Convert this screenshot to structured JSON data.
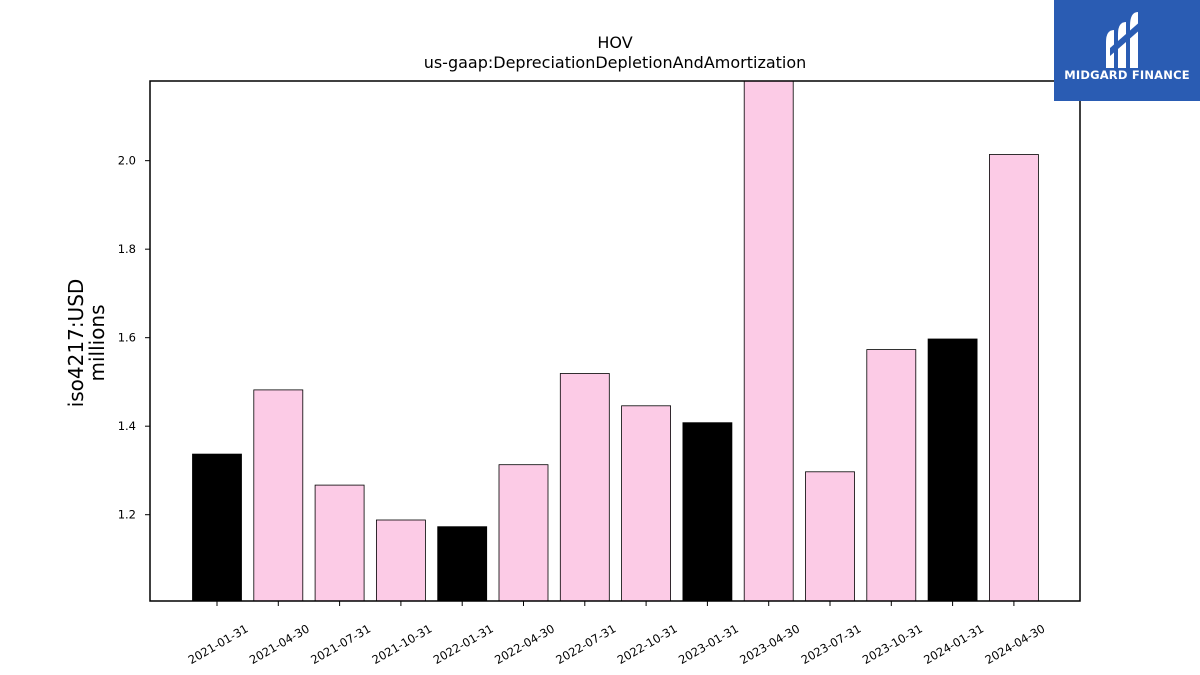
{
  "brand": {
    "name": "MIDGARD FINANCE",
    "icon": "midgard-m-logo-icon",
    "color": "#2a5cb3"
  },
  "chart_data": {
    "type": "bar",
    "title": "HOV",
    "subtitle": "us-gaap:DepreciationDepletionAndAmortization",
    "ylabel_line1": "iso4217:USD",
    "ylabel_line2": "millions",
    "xlabel": "",
    "categories": [
      "2021-01-31",
      "2021-04-30",
      "2021-07-31",
      "2021-10-31",
      "2022-01-31",
      "2022-04-30",
      "2022-07-31",
      "2022-10-31",
      "2023-01-31",
      "2023-04-30",
      "2023-07-31",
      "2023-10-31",
      "2024-01-31",
      "2024-04-30"
    ],
    "values": [
      1.337,
      1.482,
      1.267,
      1.188,
      1.173,
      1.313,
      1.519,
      1.446,
      1.408,
      2.182,
      1.297,
      1.573,
      1.597,
      2.014
    ],
    "highlight": [
      true,
      false,
      false,
      false,
      true,
      false,
      false,
      false,
      true,
      false,
      false,
      false,
      true,
      false
    ],
    "colors": {
      "highlight": "#000000",
      "normal": "#fccbe6"
    },
    "ylim": [
      1.005,
      2.18
    ],
    "yticks": [
      "1.2",
      "1.4",
      "1.6",
      "1.8",
      "2.0"
    ],
    "grid": false,
    "legend": "none"
  }
}
